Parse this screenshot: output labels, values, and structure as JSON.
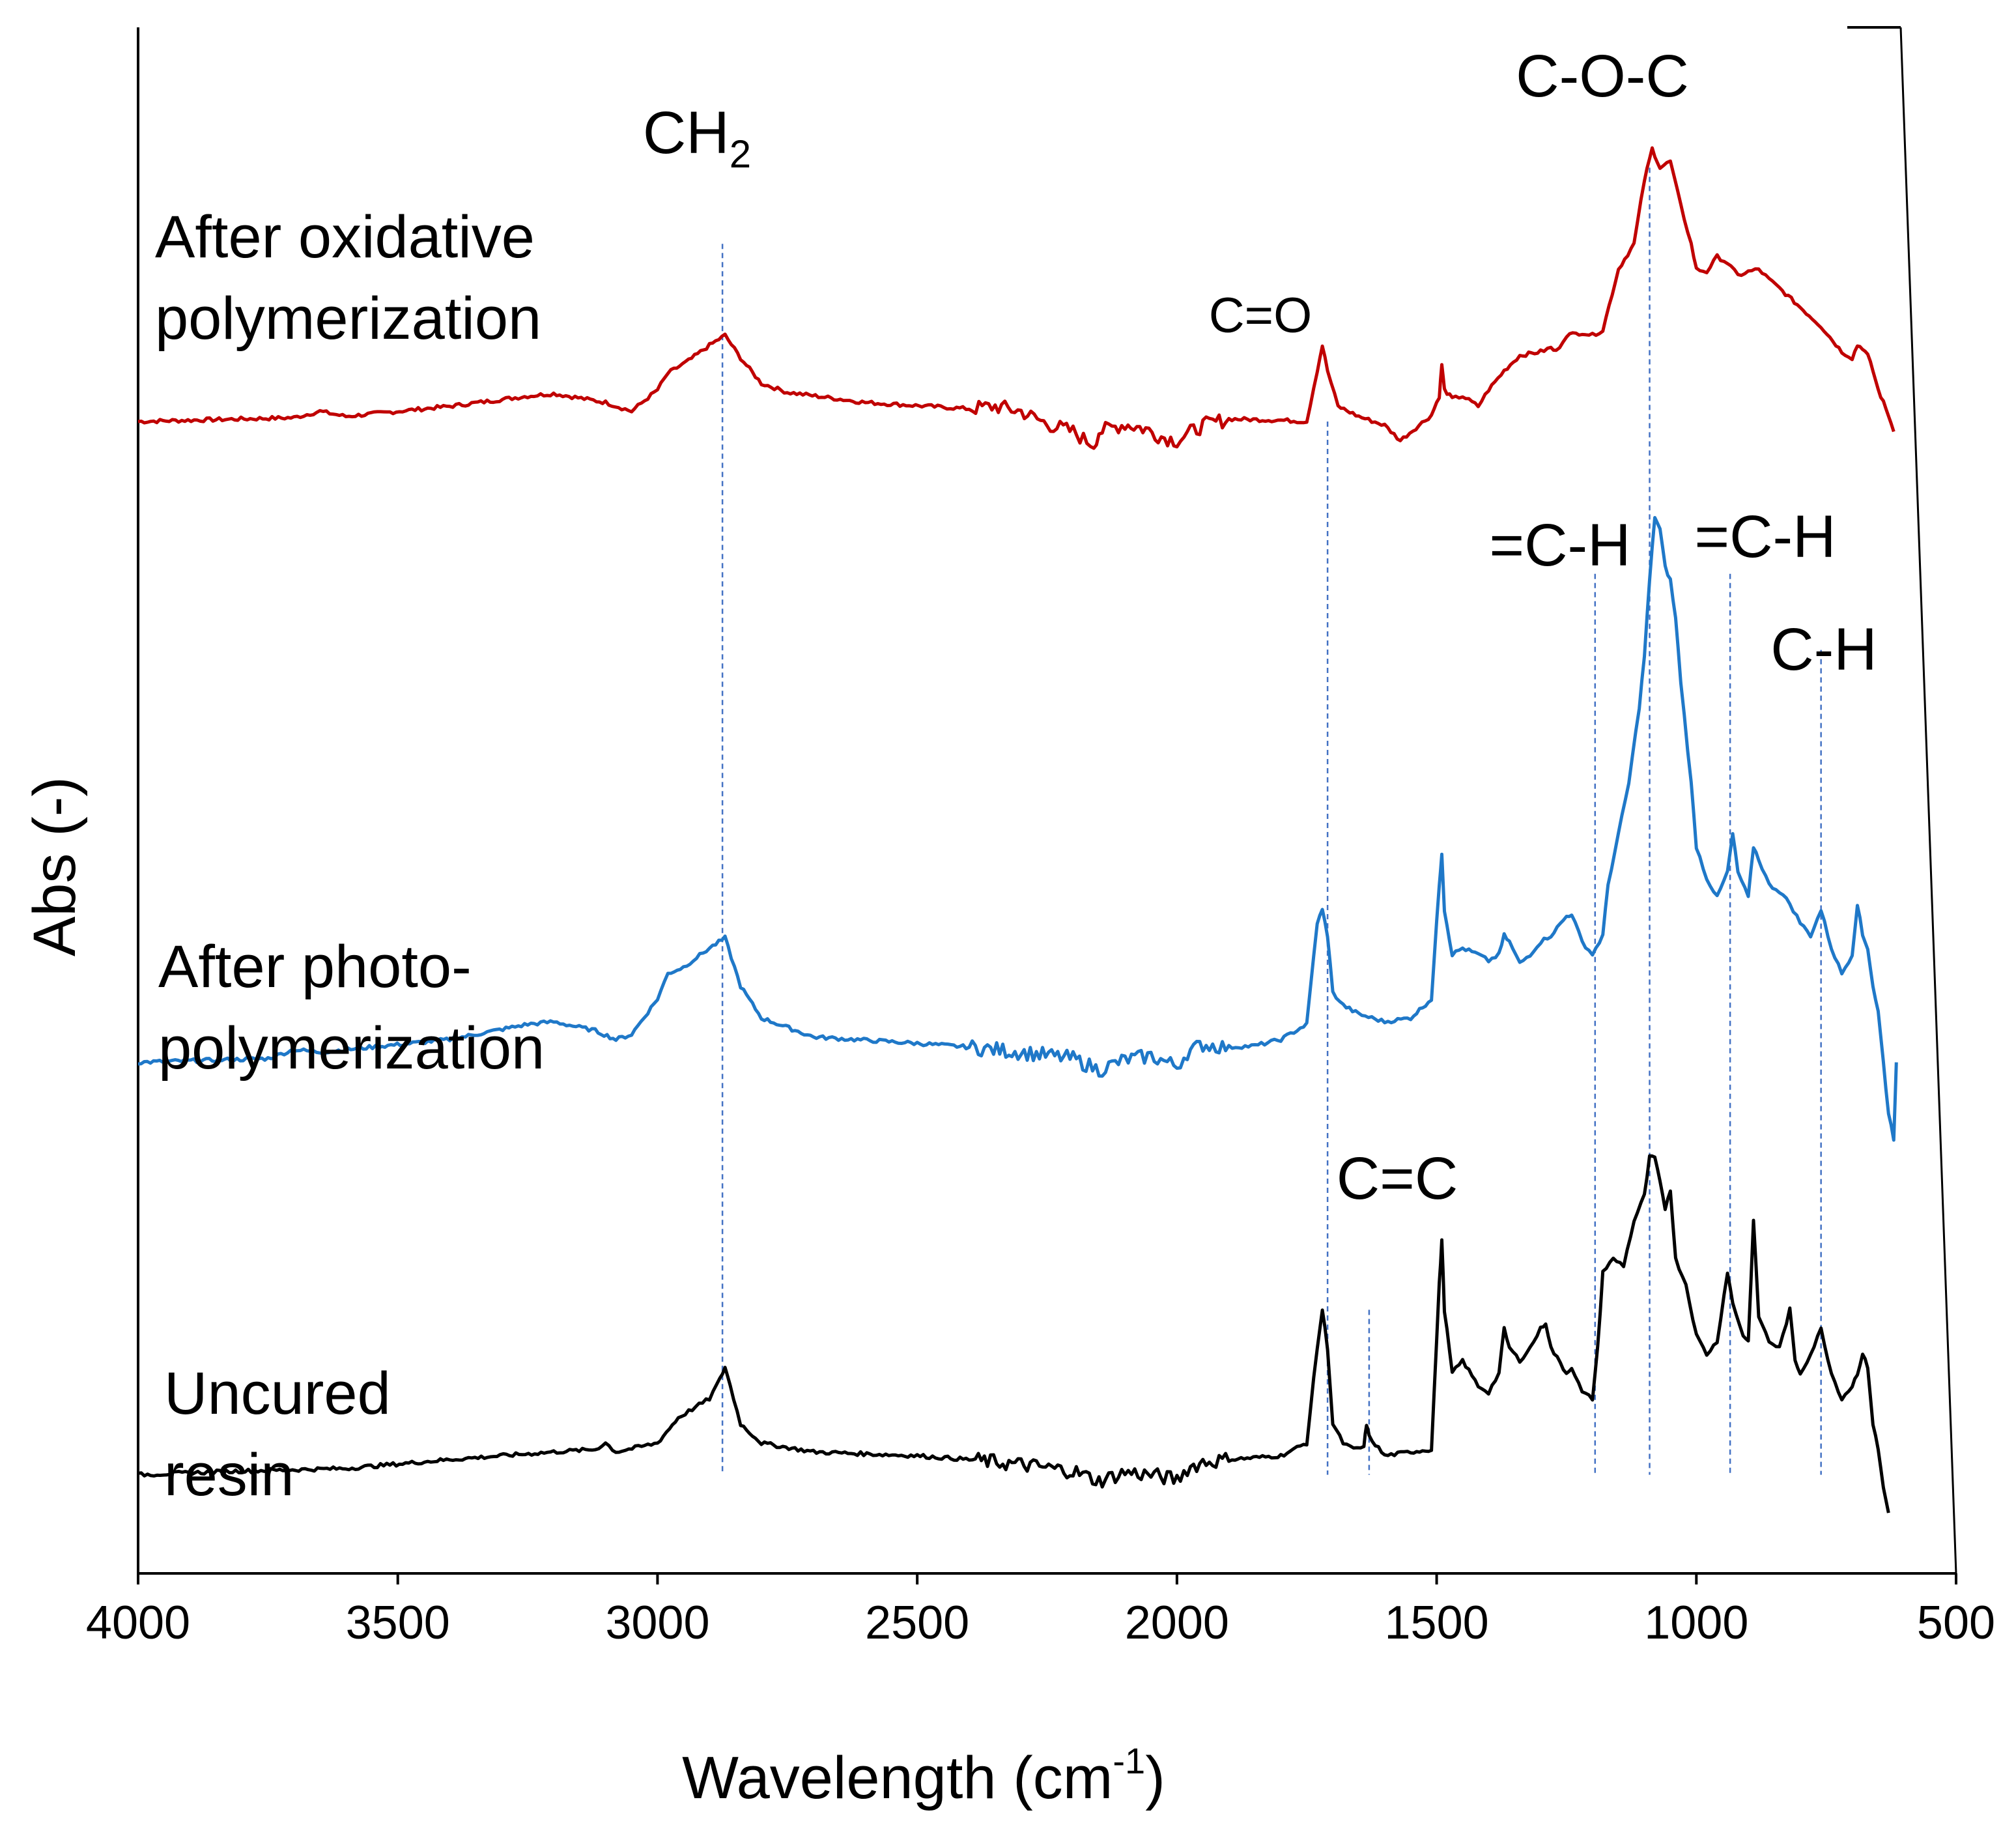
{
  "chart_data": {
    "type": "line",
    "title": "",
    "xlabel": "Wavelength (cm-1)",
    "xlabel_main": "Wavelength (cm",
    "xlabel_sup": "-1",
    "xlabel_close": ")",
    "ylabel": "Abs (-)",
    "xlim": [
      4000,
      500
    ],
    "x_reversed": true,
    "xticks": [
      4000,
      3500,
      3000,
      2500,
      2000,
      1500,
      1000,
      500
    ],
    "yticks": [],
    "grid": false,
    "series": [
      {
        "name": "After oxidative polymerization",
        "label_line1": "After oxidative",
        "label_line2": "polymerization",
        "color": "#c00000",
        "baseline": 0.7,
        "points": [
          [
            4000,
            0.0
          ],
          [
            3700,
            0.003
          ],
          [
            3650,
            0.008
          ],
          [
            3600,
            0.004
          ],
          [
            3400,
            0.012
          ],
          [
            3250,
            0.02
          ],
          [
            3200,
            0.022
          ],
          [
            3100,
            0.015
          ],
          [
            3050,
            0.008
          ],
          [
            3000,
            0.025
          ],
          [
            2980,
            0.038
          ],
          [
            2940,
            0.048
          ],
          [
            2900,
            0.06
          ],
          [
            2870,
            0.068
          ],
          [
            2840,
            0.05
          ],
          [
            2800,
            0.03
          ],
          [
            2750,
            0.023
          ],
          [
            2600,
            0.015
          ],
          [
            2400,
            0.01
          ],
          [
            2350,
            0.012
          ],
          [
            2300,
            0.008
          ],
          [
            2250,
            -0.002
          ],
          [
            2200,
            -0.008
          ],
          [
            2180,
            -0.014
          ],
          [
            2160,
            -0.018
          ],
          [
            2150,
            -0.008
          ],
          [
            2100,
            -0.002
          ],
          [
            2060,
            -0.006
          ],
          [
            2030,
            -0.012
          ],
          [
            2000,
            -0.015
          ],
          [
            1980,
            -0.01
          ],
          [
            1950,
            -0.003
          ],
          [
            1900,
            0.002
          ],
          [
            1800,
            0.001
          ],
          [
            1750,
            0.0
          ],
          [
            1730,
            0.04
          ],
          [
            1720,
            0.06
          ],
          [
            1710,
            0.04
          ],
          [
            1690,
            0.012
          ],
          [
            1650,
            0.004
          ],
          [
            1600,
            -0.003
          ],
          [
            1570,
            -0.015
          ],
          [
            1540,
            -0.005
          ],
          [
            1510,
            0.005
          ],
          [
            1495,
            0.02
          ],
          [
            1490,
            0.045
          ],
          [
            1485,
            0.025
          ],
          [
            1470,
            0.018
          ],
          [
            1450,
            0.02
          ],
          [
            1420,
            0.012
          ],
          [
            1400,
            0.025
          ],
          [
            1370,
            0.04
          ],
          [
            1340,
            0.052
          ],
          [
            1300,
            0.055
          ],
          [
            1280,
            0.058
          ],
          [
            1270,
            0.055
          ],
          [
            1250,
            0.068
          ],
          [
            1220,
            0.07
          ],
          [
            1200,
            0.068
          ],
          [
            1180,
            0.072
          ],
          [
            1150,
            0.12
          ],
          [
            1120,
            0.14
          ],
          [
            1100,
            0.19
          ],
          [
            1085,
            0.215
          ],
          [
            1070,
            0.2
          ],
          [
            1050,
            0.205
          ],
          [
            1030,
            0.17
          ],
          [
            1010,
            0.14
          ],
          [
            1000,
            0.12
          ],
          [
            980,
            0.118
          ],
          [
            960,
            0.13
          ],
          [
            940,
            0.125
          ],
          [
            920,
            0.115
          ],
          [
            900,
            0.118
          ],
          [
            880,
            0.12
          ],
          [
            860,
            0.112
          ],
          [
            840,
            0.105
          ],
          [
            800,
            0.09
          ],
          [
            760,
            0.075
          ],
          [
            720,
            0.055
          ],
          [
            700,
            0.05
          ],
          [
            690,
            0.06
          ],
          [
            680,
            0.058
          ],
          [
            670,
            0.052
          ],
          [
            660,
            0.04
          ],
          [
            650,
            0.025
          ],
          [
            640,
            0.015
          ],
          [
            630,
            0.005
          ],
          [
            620,
            -0.008
          ]
        ]
      },
      {
        "name": "After photo-polymerization",
        "label_line1": "After photo-",
        "label_line2": "polymerization",
        "color": "#1f78c8",
        "baseline": 0.195,
        "points": [
          [
            4000,
            0.0
          ],
          [
            3750,
            0.003
          ],
          [
            3700,
            0.01
          ],
          [
            3650,
            0.008
          ],
          [
            3400,
            0.018
          ],
          [
            3250,
            0.03
          ],
          [
            3200,
            0.032
          ],
          [
            3120,
            0.025
          ],
          [
            3080,
            0.018
          ],
          [
            3050,
            0.022
          ],
          [
            3000,
            0.05
          ],
          [
            2980,
            0.07
          ],
          [
            2950,
            0.075
          ],
          [
            2900,
            0.09
          ],
          [
            2870,
            0.098
          ],
          [
            2840,
            0.06
          ],
          [
            2800,
            0.035
          ],
          [
            2700,
            0.02
          ],
          [
            2500,
            0.015
          ],
          [
            2400,
            0.012
          ],
          [
            2300,
            0.008
          ],
          [
            2200,
            0.003
          ],
          [
            2150,
            -0.006
          ],
          [
            2100,
            0.002
          ],
          [
            2050,
            0.005
          ],
          [
            2000,
            -0.003
          ],
          [
            1980,
            0.008
          ],
          [
            1950,
            0.014
          ],
          [
            1900,
            0.012
          ],
          [
            1850,
            0.013
          ],
          [
            1800,
            0.018
          ],
          [
            1750,
            0.03
          ],
          [
            1730,
            0.11
          ],
          [
            1720,
            0.12
          ],
          [
            1710,
            0.1
          ],
          [
            1700,
            0.055
          ],
          [
            1680,
            0.045
          ],
          [
            1650,
            0.038
          ],
          [
            1600,
            0.032
          ],
          [
            1550,
            0.035
          ],
          [
            1510,
            0.05
          ],
          [
            1495,
            0.14
          ],
          [
            1490,
            0.165
          ],
          [
            1485,
            0.12
          ],
          [
            1470,
            0.085
          ],
          [
            1450,
            0.09
          ],
          [
            1420,
            0.085
          ],
          [
            1400,
            0.08
          ],
          [
            1380,
            0.085
          ],
          [
            1370,
            0.1
          ],
          [
            1360,
            0.095
          ],
          [
            1340,
            0.078
          ],
          [
            1320,
            0.085
          ],
          [
            1300,
            0.095
          ],
          [
            1280,
            0.1
          ],
          [
            1250,
            0.115
          ],
          [
            1240,
            0.117
          ],
          [
            1220,
            0.095
          ],
          [
            1200,
            0.085
          ],
          [
            1180,
            0.1
          ],
          [
            1170,
            0.14
          ],
          [
            1150,
            0.18
          ],
          [
            1130,
            0.22
          ],
          [
            1110,
            0.28
          ],
          [
            1100,
            0.32
          ],
          [
            1090,
            0.38
          ],
          [
            1080,
            0.43
          ],
          [
            1070,
            0.42
          ],
          [
            1060,
            0.39
          ],
          [
            1050,
            0.38
          ],
          [
            1040,
            0.35
          ],
          [
            1030,
            0.3
          ],
          [
            1010,
            0.22
          ],
          [
            1000,
            0.17
          ],
          [
            980,
            0.145
          ],
          [
            960,
            0.13
          ],
          [
            940,
            0.15
          ],
          [
            930,
            0.18
          ],
          [
            920,
            0.15
          ],
          [
            900,
            0.13
          ],
          [
            890,
            0.17
          ],
          [
            880,
            0.16
          ],
          [
            860,
            0.14
          ],
          [
            840,
            0.135
          ],
          [
            820,
            0.125
          ],
          [
            800,
            0.11
          ],
          [
            780,
            0.1
          ],
          [
            760,
            0.12
          ],
          [
            740,
            0.09
          ],
          [
            720,
            0.07
          ],
          [
            700,
            0.085
          ],
          [
            690,
            0.125
          ],
          [
            680,
            0.1
          ],
          [
            670,
            0.09
          ],
          [
            660,
            0.06
          ],
          [
            650,
            0.04
          ],
          [
            640,
            0.0
          ],
          [
            630,
            -0.04
          ],
          [
            620,
            -0.06
          ],
          [
            615,
            0.0
          ]
        ]
      },
      {
        "name": "Uncured resin",
        "label_line1": "Uncured",
        "label_line2": "resin",
        "color": "#000000",
        "baseline": -0.13,
        "points": [
          [
            4000,
            0.0
          ],
          [
            3800,
            0.003
          ],
          [
            3600,
            0.005
          ],
          [
            3400,
            0.012
          ],
          [
            3200,
            0.018
          ],
          [
            3120,
            0.02
          ],
          [
            3100,
            0.025
          ],
          [
            3080,
            0.018
          ],
          [
            3000,
            0.025
          ],
          [
            2960,
            0.045
          ],
          [
            2940,
            0.05
          ],
          [
            2920,
            0.055
          ],
          [
            2900,
            0.06
          ],
          [
            2880,
            0.075
          ],
          [
            2870,
            0.085
          ],
          [
            2860,
            0.07
          ],
          [
            2840,
            0.04
          ],
          [
            2800,
            0.025
          ],
          [
            2700,
            0.018
          ],
          [
            2500,
            0.015
          ],
          [
            2400,
            0.012
          ],
          [
            2300,
            0.008
          ],
          [
            2200,
            0.003
          ],
          [
            2150,
            -0.005
          ],
          [
            2100,
            0.002
          ],
          [
            2050,
            0.0
          ],
          [
            2000,
            -0.004
          ],
          [
            1980,
            0.005
          ],
          [
            1950,
            0.01
          ],
          [
            1900,
            0.012
          ],
          [
            1800,
            0.015
          ],
          [
            1750,
            0.025
          ],
          [
            1730,
            0.1
          ],
          [
            1720,
            0.13
          ],
          [
            1710,
            0.1
          ],
          [
            1700,
            0.04
          ],
          [
            1680,
            0.025
          ],
          [
            1660,
            0.02
          ],
          [
            1640,
            0.022
          ],
          [
            1635,
            0.04
          ],
          [
            1630,
            0.03
          ],
          [
            1600,
            0.015
          ],
          [
            1550,
            0.018
          ],
          [
            1510,
            0.02
          ],
          [
            1495,
            0.15
          ],
          [
            1490,
            0.185
          ],
          [
            1485,
            0.13
          ],
          [
            1470,
            0.08
          ],
          [
            1450,
            0.09
          ],
          [
            1420,
            0.07
          ],
          [
            1400,
            0.065
          ],
          [
            1380,
            0.08
          ],
          [
            1370,
            0.115
          ],
          [
            1360,
            0.1
          ],
          [
            1340,
            0.09
          ],
          [
            1320,
            0.1
          ],
          [
            1300,
            0.115
          ],
          [
            1290,
            0.12
          ],
          [
            1280,
            0.1
          ],
          [
            1250,
            0.08
          ],
          [
            1240,
            0.085
          ],
          [
            1220,
            0.065
          ],
          [
            1200,
            0.06
          ],
          [
            1190,
            0.1
          ],
          [
            1180,
            0.16
          ],
          [
            1160,
            0.17
          ],
          [
            1140,
            0.165
          ],
          [
            1120,
            0.2
          ],
          [
            1100,
            0.22
          ],
          [
            1090,
            0.25
          ],
          [
            1080,
            0.25
          ],
          [
            1070,
            0.23
          ],
          [
            1060,
            0.21
          ],
          [
            1050,
            0.225
          ],
          [
            1040,
            0.17
          ],
          [
            1020,
            0.15
          ],
          [
            1000,
            0.11
          ],
          [
            980,
            0.095
          ],
          [
            960,
            0.105
          ],
          [
            940,
            0.16
          ],
          [
            930,
            0.135
          ],
          [
            910,
            0.11
          ],
          [
            900,
            0.105
          ],
          [
            890,
            0.2
          ],
          [
            880,
            0.125
          ],
          [
            860,
            0.105
          ],
          [
            840,
            0.1
          ],
          [
            820,
            0.13
          ],
          [
            810,
            0.09
          ],
          [
            800,
            0.08
          ],
          [
            780,
            0.095
          ],
          [
            760,
            0.115
          ],
          [
            740,
            0.08
          ],
          [
            720,
            0.06
          ],
          [
            700,
            0.07
          ],
          [
            690,
            0.08
          ],
          [
            680,
            0.095
          ],
          [
            670,
            0.085
          ],
          [
            660,
            0.04
          ],
          [
            650,
            0.02
          ],
          [
            640,
            -0.01
          ],
          [
            630,
            -0.03
          ]
        ]
      }
    ],
    "peak_lines": [
      {
        "label": "CH",
        "sub": "2",
        "x": 2875,
        "from": "Uncured resin",
        "to": "After oxidative polymerization",
        "y_top": 0.84,
        "y_bottom": -0.13
      },
      {
        "label": "C=O",
        "x": 1710,
        "y_top": 0.7,
        "y_bottom": -0.13
      },
      {
        "label": "C-O-C",
        "x": 1090,
        "y_top": 0.9,
        "y_bottom": -0.13
      },
      {
        "label": "=C-H",
        "x": 1195,
        "y_top": 0.58,
        "y_bottom": -0.13
      },
      {
        "label": "=C-H",
        "x": 935,
        "y_top": 0.58,
        "y_bottom": -0.13
      },
      {
        "label": "C-H",
        "x": 760,
        "y_top": 0.52,
        "y_bottom": -0.13
      },
      {
        "label": "C=C",
        "x": 1630,
        "y_top": 0.0,
        "y_bottom": -0.13
      }
    ]
  }
}
